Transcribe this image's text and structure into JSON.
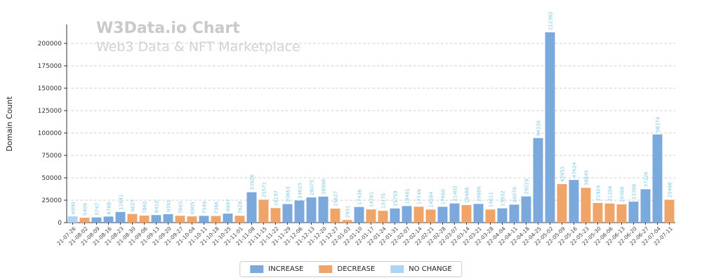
{
  "chart_data": {
    "type": "bar",
    "title": "W3Data.io Chart",
    "subtitle": "Web3 Data & NFT Marketplace",
    "ylabel": "Domain Count",
    "xlabel": "",
    "ylim": [
      0,
      221000
    ],
    "yticks": [
      0,
      25000,
      50000,
      75000,
      100000,
      125000,
      150000,
      175000,
      200000
    ],
    "grid": "horizontal-dashed",
    "legend_position": "bottom-center",
    "categories": [
      "21-07-26",
      "21-08-02",
      "21-08-09",
      "21-08-16",
      "21-08-23",
      "21-08-30",
      "21-09-06",
      "21-09-13",
      "21-09-20",
      "21-09-27",
      "21-10-04",
      "21-10-11",
      "21-10-18",
      "21-10-25",
      "21-11-01",
      "21-11-08",
      "21-11-15",
      "21-11-22",
      "21-11-29",
      "21-12-06",
      "21-12-13",
      "21-12-20",
      "21-12-27",
      "22-01-03",
      "22-01-10",
      "22-01-17",
      "22-01-24",
      "22-01-31",
      "22-02-07",
      "22-02-14",
      "22-02-21",
      "22-02-28",
      "22-03-07",
      "22-03-14",
      "22-03-21",
      "22-03-28",
      "22-04-04",
      "22-04-11",
      "22-04-18",
      "22-04-25",
      "22-05-02",
      "22-05-09",
      "22-05-16",
      "22-05-23",
      "22-05-30",
      "22-06-06",
      "22-06-13",
      "22-06-20",
      "22-06-27",
      "22-07-04",
      "22-07-11"
    ],
    "values": [
      6990,
      5409,
      5747,
      6768,
      11841,
      9627,
      7862,
      8410,
      9391,
      7603,
      6905,
      7549,
      7366,
      9997,
      7628,
      33926,
      25571,
      16197,
      20663,
      24623,
      28075,
      28998,
      15627,
      2931,
      17436,
      14761,
      13175,
      15759,
      18461,
      17749,
      14584,
      17660,
      21402,
      19488,
      20866,
      14611,
      15932,
      20070,
      29229,
      94330,
      212382,
      42953,
      47624,
      38845,
      21924,
      21256,
      20368,
      23398,
      37226,
      98374,
      25488
    ],
    "statuses": [
      "no_change",
      "decrease",
      "increase",
      "increase",
      "increase",
      "decrease",
      "decrease",
      "increase",
      "increase",
      "decrease",
      "decrease",
      "increase",
      "decrease",
      "increase",
      "decrease",
      "increase",
      "decrease",
      "decrease",
      "increase",
      "increase",
      "increase",
      "increase",
      "decrease",
      "decrease",
      "increase",
      "decrease",
      "decrease",
      "increase",
      "increase",
      "decrease",
      "decrease",
      "increase",
      "increase",
      "decrease",
      "increase",
      "decrease",
      "increase",
      "increase",
      "increase",
      "increase",
      "increase",
      "decrease",
      "increase",
      "decrease",
      "decrease",
      "decrease",
      "decrease",
      "increase",
      "increase",
      "increase",
      "decrease"
    ],
    "legend": [
      {
        "label": "INCREASE",
        "status": "increase",
        "color": "#7ca9dc"
      },
      {
        "label": "DECREASE",
        "status": "decrease",
        "color": "#f0a467"
      },
      {
        "label": "NO CHANGE",
        "status": "no_change",
        "color": "#aed4f2"
      }
    ],
    "colors": {
      "increase": "#7ca9dc",
      "decrease": "#f0a467",
      "no_change": "#aed4f2",
      "value_label": "#7ec8e4",
      "grid": "#cccccc",
      "axis": "#333333",
      "tick_label": "#444444",
      "watermark_title": "#c9c9c9",
      "watermark_subtitle": "#d2d2d2"
    }
  }
}
